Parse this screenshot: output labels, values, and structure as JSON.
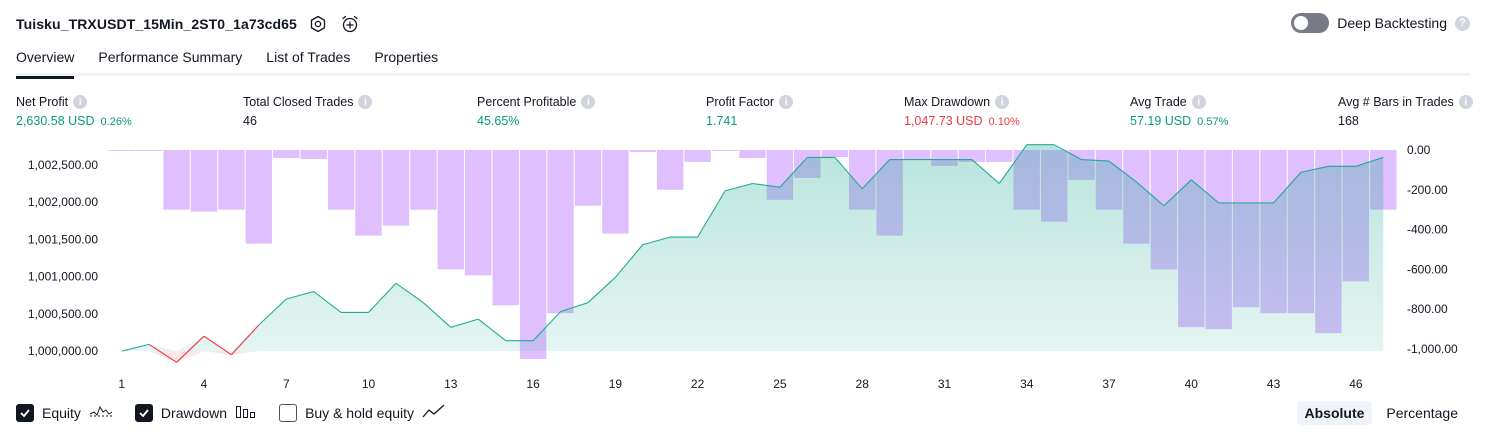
{
  "header": {
    "title": "Tuisku_TRXUSDT_15Min_2ST0_1a73cd65",
    "settings_icon": "gear-icon",
    "alert_icon": "alarm-clock-plus-icon"
  },
  "deep_backtesting": {
    "label": "Deep Backtesting",
    "enabled": false
  },
  "tabs": [
    {
      "label": "Overview",
      "active": true
    },
    {
      "label": "Performance Summary",
      "active": false
    },
    {
      "label": "List of Trades",
      "active": false
    },
    {
      "label": "Properties",
      "active": false
    }
  ],
  "stats": [
    {
      "label": "Net Profit",
      "value": "2,630.58 USD",
      "pct": "0.26%",
      "color": "green"
    },
    {
      "label": "Total Closed Trades",
      "value": "46",
      "pct": "",
      "color": "dark"
    },
    {
      "label": "Percent Profitable",
      "value": "45.65%",
      "pct": "",
      "color": "green"
    },
    {
      "label": "Profit Factor",
      "value": "1.741",
      "pct": "",
      "color": "green"
    },
    {
      "label": "Max Drawdown",
      "value": "1,047.73 USD",
      "pct": "0.10%",
      "color": "red"
    },
    {
      "label": "Avg Trade",
      "value": "57.19 USD",
      "pct": "0.57%",
      "color": "green"
    },
    {
      "label": "Avg # Bars in Trades",
      "value": "168",
      "pct": "",
      "color": "dark"
    }
  ],
  "colors": {
    "equity_line": "#22ab94",
    "equity_loss": "#f23645",
    "equity_fill": "#22ab94",
    "drawdown_bar": "#d6a9ff",
    "positive": "#089981",
    "negative": "#f23645"
  },
  "chart_data": {
    "type": "line",
    "x": [
      1,
      2,
      3,
      4,
      5,
      6,
      7,
      8,
      9,
      10,
      11,
      12,
      13,
      14,
      15,
      16,
      17,
      18,
      19,
      20,
      21,
      22,
      23,
      24,
      25,
      26,
      27,
      28,
      29,
      30,
      31,
      32,
      33,
      34,
      35,
      36,
      37,
      38,
      39,
      40,
      41,
      42,
      43,
      44,
      45,
      46,
      47
    ],
    "x_ticks": [
      "1",
      "4",
      "7",
      "10",
      "13",
      "16",
      "19",
      "22",
      "25",
      "28",
      "31",
      "34",
      "37",
      "40",
      "43",
      "46"
    ],
    "series": [
      {
        "name": "Equity",
        "axis": "left",
        "values": [
          1000000,
          1000090,
          999850,
          1000200,
          999950,
          1000350,
          1000700,
          1000800,
          1000520,
          1000520,
          1000910,
          1000650,
          1000320,
          1000430,
          1000140,
          1000140,
          1000530,
          1000650,
          1000990,
          1001430,
          1001530,
          1001530,
          1002150,
          1002250,
          1002200,
          1002600,
          1002600,
          1002180,
          1002570,
          1002570,
          1002570,
          1002570,
          1002250,
          1002770,
          1002770,
          1002570,
          1002550,
          1002270,
          1001950,
          1002300,
          1001990,
          1001990,
          1001990,
          1002400,
          1002480,
          1002480,
          1002600
        ]
      },
      {
        "name": "Drawdown",
        "axis": "right",
        "values": [
          0,
          -5,
          -300,
          -310,
          -300,
          -470,
          -40,
          -45,
          -300,
          -430,
          -380,
          -300,
          -600,
          -630,
          -780,
          -1050,
          -820,
          -280,
          -420,
          -10,
          -200,
          -60,
          -5,
          -40,
          -250,
          -140,
          -35,
          -300,
          -430,
          -50,
          -80,
          -60,
          -60,
          -300,
          -360,
          -150,
          -300,
          -470,
          -600,
          -890,
          -900,
          -790,
          -820,
          -820,
          -920,
          -660,
          -300
        ]
      }
    ],
    "left_axis": {
      "ticks": [
        "1,000,000.00",
        "1,000,500.00",
        "1,001,000.00",
        "1,001,500.00",
        "1,002,000.00",
        "1,002,500.00"
      ],
      "range": [
        999800,
        1002780
      ]
    },
    "right_axis": {
      "ticks": [
        "0.00",
        "-200.00",
        "-400.00",
        "-600.00",
        "-800.00",
        "-1,000.00"
      ],
      "range": [
        -1060,
        0
      ]
    },
    "legend": [
      {
        "name": "Equity",
        "checked": true,
        "icon": "equity-line-icon"
      },
      {
        "name": "Drawdown",
        "checked": true,
        "icon": "drawdown-bars-icon"
      },
      {
        "name": "Buy & hold equity",
        "checked": false,
        "icon": "trend-line-icon"
      }
    ]
  },
  "mode": {
    "absolute_label": "Absolute",
    "percentage_label": "Percentage",
    "active": "Absolute"
  }
}
